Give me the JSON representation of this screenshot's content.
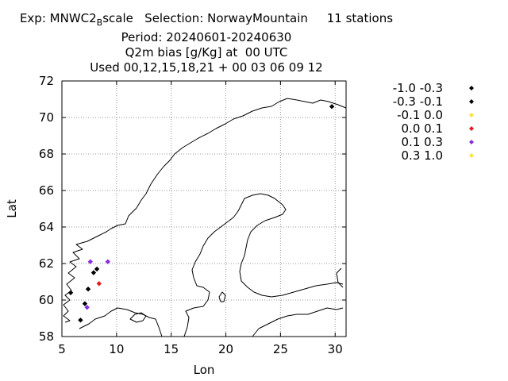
{
  "title": {
    "line1_prefix": "Exp: MNWC2",
    "line1_sub": "B",
    "line1_suffix": "scale   Selection: NorwayMountain     11 stations",
    "line2": "Period: 20240601-20240630",
    "line3": "Q2m bias [g/Kg] at  00 UTC",
    "line4": "Used 00,12,15,18,21 + 00 03 06 09 12"
  },
  "chart_data": {
    "type": "scatter",
    "xlabel": "Lon",
    "ylabel": "Lat",
    "xlim": [
      5,
      31
    ],
    "ylim": [
      58,
      72
    ],
    "xticks": [
      5,
      10,
      15,
      20,
      25,
      30
    ],
    "yticks": [
      58,
      60,
      62,
      64,
      66,
      68,
      70,
      72
    ],
    "grid": true,
    "legend_position": "right",
    "legend": [
      {
        "label": "-1.0 -0.3",
        "color": "#000000"
      },
      {
        "label": "-0.3 -0.1",
        "color": "#000000"
      },
      {
        "label": "-0.1 0.0",
        "color": "#ffe135"
      },
      {
        "label": "0.0 0.1",
        "color": "#e41a1c"
      },
      {
        "label": "0.1 0.3",
        "color": "#8a2be2"
      },
      {
        "label": "0.3 1.0",
        "color": "#ffe135"
      }
    ],
    "points": [
      {
        "lon": 5.8,
        "lat": 60.4,
        "color": "#000000"
      },
      {
        "lon": 6.7,
        "lat": 58.9,
        "color": "#000000"
      },
      {
        "lon": 7.1,
        "lat": 59.8,
        "color": "#000000"
      },
      {
        "lon": 7.3,
        "lat": 59.6,
        "color": "#8a2be2"
      },
      {
        "lon": 7.4,
        "lat": 60.6,
        "color": "#000000"
      },
      {
        "lon": 7.6,
        "lat": 62.1,
        "color": "#8a2be2"
      },
      {
        "lon": 7.9,
        "lat": 61.5,
        "color": "#000000"
      },
      {
        "lon": 8.2,
        "lat": 61.7,
        "color": "#000000"
      },
      {
        "lon": 8.4,
        "lat": 60.9,
        "color": "#e41a1c"
      },
      {
        "lon": 9.2,
        "lat": 62.1,
        "color": "#8a2be2"
      },
      {
        "lon": 29.7,
        "lat": 70.6,
        "color": "#000000"
      }
    ]
  }
}
